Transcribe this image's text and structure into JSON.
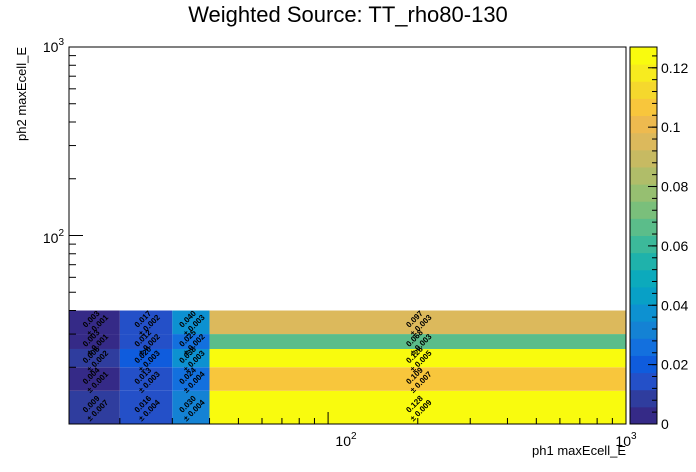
{
  "chart_data": {
    "type": "heatmap",
    "title": "Weighted Source: TT_rho80-130",
    "xlabel": "ph1 maxEcell_E",
    "ylabel": "ph2 maxEcell_E",
    "xscale": "log",
    "yscale": "log",
    "xlim": [
      13.5,
      1000
    ],
    "ylim": [
      10,
      1000
    ],
    "x_ticks": [
      "10²",
      "10³"
    ],
    "y_ticks": [
      "10²",
      "10³"
    ],
    "x_edges": [
      13.5,
      20,
      30,
      40,
      1000
    ],
    "y_edges": [
      10,
      15,
      20,
      25,
      30,
      40,
      1000
    ],
    "cells": [
      {
        "xi": 0,
        "yi": 0,
        "value": 0.009,
        "error": 0.007
      },
      {
        "xi": 1,
        "yi": 0,
        "value": 0.016,
        "error": 0.004
      },
      {
        "xi": 2,
        "yi": 0,
        "value": 0.03,
        "error": 0.004
      },
      {
        "xi": 3,
        "yi": 0,
        "value": 0.128,
        "error": 0.009
      },
      {
        "xi": 0,
        "yi": 1,
        "value": 0.004,
        "error": 0.001
      },
      {
        "xi": 1,
        "yi": 1,
        "value": 0.013,
        "error": 0.003
      },
      {
        "xi": 2,
        "yi": 1,
        "value": 0.024,
        "error": 0.004
      },
      {
        "xi": 3,
        "yi": 1,
        "value": 0.109,
        "error": 0.007
      },
      {
        "xi": 0,
        "yi": 2,
        "value": 0.006,
        "error": 0.002
      },
      {
        "xi": 1,
        "yi": 2,
        "value": 0.02,
        "error": 0.003
      },
      {
        "xi": 2,
        "yi": 2,
        "value": 0.038,
        "error": 0.003
      },
      {
        "xi": 3,
        "yi": 2,
        "value": 0.126,
        "error": 0.005
      },
      {
        "xi": 0,
        "yi": 3,
        "value": 0.003,
        "error": 0.001
      },
      {
        "xi": 1,
        "yi": 3,
        "value": 0.012,
        "error": 0.002
      },
      {
        "xi": 2,
        "yi": 3,
        "value": 0.025,
        "error": 0.002
      },
      {
        "xi": 3,
        "yi": 3,
        "value": 0.068,
        "error": 0.003
      },
      {
        "xi": 0,
        "yi": 4,
        "value": 0.003,
        "error": 0.001
      },
      {
        "xi": 1,
        "yi": 4,
        "value": 0.017,
        "error": 0.002
      },
      {
        "xi": 2,
        "yi": 4,
        "value": 0.04,
        "error": 0.003
      },
      {
        "xi": 3,
        "yi": 4,
        "value": 0.097,
        "error": 0.003
      }
    ],
    "colorbar": {
      "min": 0,
      "max": 0.127,
      "ticks": [
        {
          "value": 0,
          "label": "0"
        },
        {
          "value": 0.02,
          "label": "0.02"
        },
        {
          "value": 0.04,
          "label": "0.04"
        },
        {
          "value": 0.06,
          "label": "0.06"
        },
        {
          "value": 0.08,
          "label": "0.08"
        },
        {
          "value": 0.1,
          "label": "0.1"
        },
        {
          "value": 0.12,
          "label": "0.12"
        }
      ],
      "palette": [
        "#352a87",
        "#2f3d9e",
        "#2450c8",
        "#0f5cdd",
        "#1370de",
        "#1482d4",
        "#0d91d1",
        "#08a0c6",
        "#0caabc",
        "#1fb2ab",
        "#3cb99a",
        "#5bbd8a",
        "#7abf7b",
        "#96bf71",
        "#b0bd69",
        "#c7ba62",
        "#dcb95c",
        "#eeba4f",
        "#f8c63c",
        "#f5d82d",
        "#f7eb1f",
        "#f9fb0e"
      ]
    }
  }
}
